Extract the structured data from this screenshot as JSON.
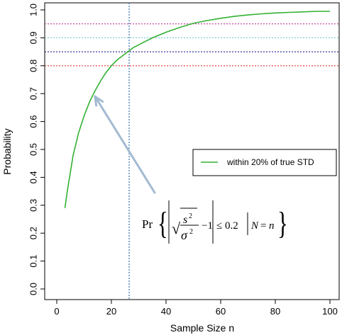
{
  "chart_data": {
    "type": "line",
    "xlabel": "Sample Size n",
    "ylabel": "Probability",
    "xlim": [
      0,
      102
    ],
    "ylim": [
      0,
      1.03
    ],
    "xticks": [
      "0",
      "20",
      "40",
      "60",
      "80",
      "100"
    ],
    "yticks": [
      "0.0",
      "0.1",
      "0.2",
      "0.3",
      "0.4",
      "0.5",
      "0.6",
      "0.7",
      "0.8",
      "0.9",
      "1.0"
    ],
    "series": [
      {
        "name": "within 20% of true STD",
        "color": "#33b133",
        "x": [
          3,
          4,
          5,
          6,
          7,
          8,
          9,
          10,
          12,
          14,
          16,
          18,
          20,
          22,
          24,
          26,
          28,
          30,
          32,
          35,
          38,
          40,
          45,
          50,
          55,
          60,
          65,
          70,
          75,
          80,
          85,
          90,
          95,
          100
        ],
        "y": [
          0.29,
          0.36,
          0.42,
          0.48,
          0.52,
          0.56,
          0.59,
          0.62,
          0.67,
          0.71,
          0.745,
          0.775,
          0.8,
          0.82,
          0.835,
          0.85,
          0.865,
          0.875,
          0.885,
          0.9,
          0.912,
          0.92,
          0.937,
          0.952,
          0.962,
          0.97,
          0.977,
          0.982,
          0.986,
          0.989,
          0.991,
          0.993,
          0.995,
          0.995
        ]
      }
    ],
    "reference_lines": {
      "horizontal": [
        {
          "y": 0.95,
          "color": "#c0389a"
        },
        {
          "y": 0.9,
          "color": "#7fcfd9"
        },
        {
          "y": 0.85,
          "color": "#33339a"
        },
        {
          "y": 0.8,
          "color": "#e03a3a"
        }
      ],
      "vertical": [
        {
          "x": 26.5,
          "color": "#2f6fb0"
        }
      ]
    },
    "legend": {
      "position": "right",
      "label": "within 20% of true STD"
    },
    "annotation": {
      "formula": "Pr{ | √(s²/σ²) − 1 | ≤ 0.2 | N = n }",
      "arrow_target": {
        "x": 14,
        "y": 0.69
      },
      "arrow_color": "#a3bad2"
    },
    "grid": false
  }
}
